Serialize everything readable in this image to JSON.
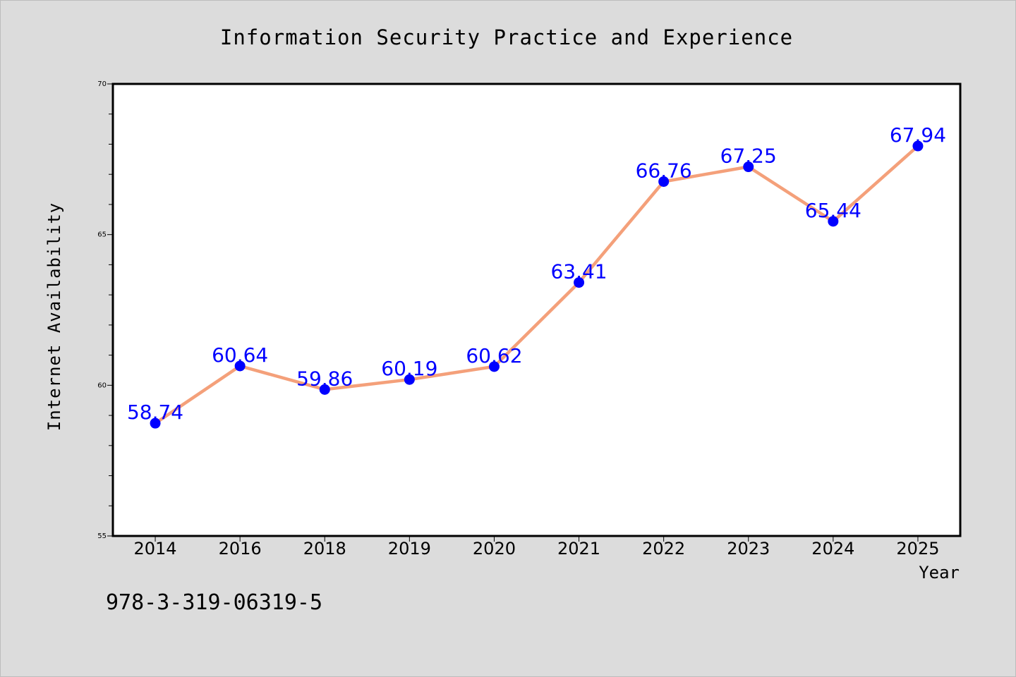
{
  "chart_data": {
    "type": "line",
    "title": "Information Security Practice and Experience",
    "xlabel": "Year",
    "ylabel": "Internet Availability",
    "categories": [
      "2014",
      "2016",
      "2018",
      "2019",
      "2020",
      "2021",
      "2022",
      "2023",
      "2024",
      "2025"
    ],
    "series": [
      {
        "values": [
          58.74,
          60.64,
          59.86,
          60.19,
          60.62,
          63.41,
          66.76,
          67.25,
          65.44,
          67.94
        ],
        "data_labels": [
          "58.74",
          "60.64",
          "59.86",
          "60.19",
          "60.62",
          "63.41",
          "66.76",
          "67.25",
          "65.44",
          "67.94"
        ]
      }
    ],
    "ylim": [
      55,
      70
    ],
    "y_major_ticks": [
      55,
      60,
      65,
      70
    ],
    "y_minor_step": 1,
    "grid": false,
    "legend": "none",
    "colors": {
      "line": "#f4a07a",
      "marker": "#0000ff",
      "data_label": "#0000ff",
      "figure_background": "#dcdcdc",
      "plot_background": "#ffffff"
    }
  },
  "caption": "978-3-319-06319-5"
}
